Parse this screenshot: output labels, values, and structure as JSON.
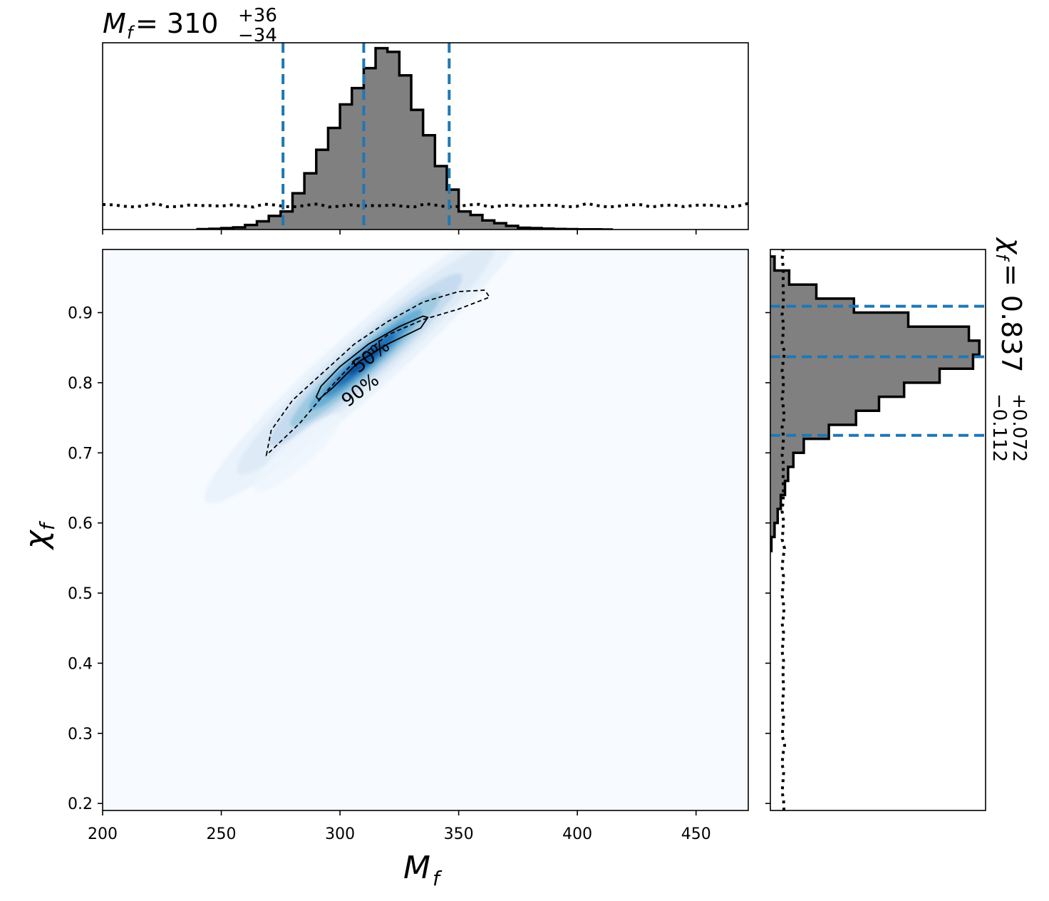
{
  "chart_data": [
    {
      "type": "heatmap",
      "panel": "joint",
      "xlabel": "M",
      "xlabel_sub": "f",
      "ylabel": "χ",
      "ylabel_sub": "f",
      "xlim": [
        200,
        472
      ],
      "ylim": [
        0.19,
        0.99
      ],
      "xticks": [
        200,
        250,
        300,
        350,
        400,
        450
      ],
      "yticks": [
        0.2,
        0.3,
        0.4,
        0.5,
        0.6,
        0.7,
        0.8,
        0.9
      ],
      "ytick_labels": [
        "0.2",
        "0.3",
        "0.4",
        "0.5",
        "0.6",
        "0.7",
        "0.8",
        "0.9"
      ],
      "xtick_labels": [
        "200",
        "250",
        "300",
        "350",
        "400",
        "450"
      ],
      "colormap": "Blues",
      "density_peak": {
        "x": 312,
        "y": 0.837
      },
      "contours": [
        {
          "label": "50%",
          "style": "solid",
          "path": [
            [
              290,
              0.78
            ],
            [
              292,
              0.795
            ],
            [
              300,
              0.823
            ],
            [
              312,
              0.855
            ],
            [
              325,
              0.88
            ],
            [
              335,
              0.895
            ],
            [
              337,
              0.893
            ],
            [
              334,
              0.878
            ],
            [
              320,
              0.855
            ],
            [
              308,
              0.83
            ],
            [
              297,
              0.793
            ],
            [
              291,
              0.776
            ],
            [
              290,
              0.78
            ]
          ]
        },
        {
          "label": "90%",
          "style": "dashed",
          "path": [
            [
              269,
              0.697
            ],
            [
              271,
              0.732
            ],
            [
              280,
              0.775
            ],
            [
              293,
              0.815
            ],
            [
              306,
              0.855
            ],
            [
              320,
              0.887
            ],
            [
              335,
              0.915
            ],
            [
              350,
              0.93
            ],
            [
              361,
              0.932
            ],
            [
              363,
              0.922
            ],
            [
              350,
              0.905
            ],
            [
              335,
              0.89
            ],
            [
              320,
              0.868
            ],
            [
              306,
              0.83
            ],
            [
              295,
              0.79
            ],
            [
              283,
              0.742
            ],
            [
              270,
              0.7
            ],
            [
              269,
              0.697
            ]
          ]
        }
      ]
    },
    {
      "type": "bar",
      "panel": "top-marginal",
      "title_main": "M",
      "title_sub": "f",
      "title_value": " = 310",
      "title_plus": "+36",
      "title_minus": "−34",
      "xlim": [
        200,
        472
      ],
      "ylim": [
        0,
        1.03
      ],
      "bin_edges": [
        240,
        245,
        250,
        255,
        260,
        265,
        270,
        275,
        280,
        285,
        290,
        295,
        300,
        305,
        310,
        315,
        320,
        325,
        330,
        335,
        340,
        345,
        350,
        355,
        360,
        365,
        370,
        375,
        380,
        385,
        390,
        395,
        400,
        405,
        410,
        415
      ],
      "values": [
        0.002,
        0.004,
        0.008,
        0.012,
        0.025,
        0.045,
        0.075,
        0.1,
        0.2,
        0.31,
        0.44,
        0.56,
        0.69,
        0.78,
        0.89,
        1.0,
        0.98,
        0.85,
        0.66,
        0.52,
        0.35,
        0.22,
        0.1,
        0.08,
        0.05,
        0.035,
        0.02,
        0.01,
        0.008,
        0.005,
        0.003,
        0.002,
        0.001,
        0.001,
        0.0
      ],
      "quantiles": [
        276,
        310,
        346
      ],
      "prior_level": 0.13
    },
    {
      "type": "bar",
      "panel": "right-marginal",
      "orientation": "horizontal",
      "title_main": "χ",
      "title_sub": "f",
      "title_value": " = 0.837",
      "title_plus": "+0.072",
      "title_minus": "−0.112",
      "ylim": [
        0.19,
        0.99
      ],
      "xlim": [
        0,
        1.03
      ],
      "bin_edges": [
        0.56,
        0.58,
        0.6,
        0.62,
        0.64,
        0.66,
        0.68,
        0.7,
        0.72,
        0.74,
        0.76,
        0.78,
        0.8,
        0.82,
        0.84,
        0.86,
        0.88,
        0.9,
        0.92,
        0.94,
        0.96,
        0.98
      ],
      "values": [
        0.005,
        0.02,
        0.035,
        0.05,
        0.07,
        0.085,
        0.11,
        0.16,
        0.28,
        0.41,
        0.52,
        0.64,
        0.81,
        0.97,
        1.0,
        0.95,
        0.66,
        0.4,
        0.22,
        0.09,
        0.02
      ],
      "quantiles": [
        0.725,
        0.837,
        0.909
      ],
      "prior_level": 0.06
    }
  ]
}
